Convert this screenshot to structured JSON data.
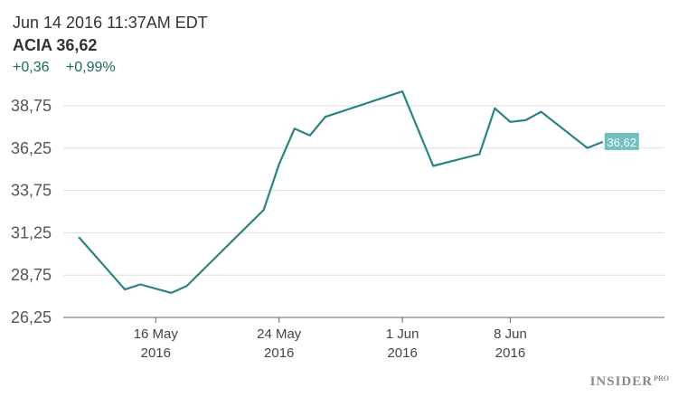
{
  "header": {
    "timestamp": "Jun 14 2016 11:37AM EDT",
    "ticker": "ACIA",
    "price": "36,62",
    "change_abs": "+0,36",
    "change_pct": "+0,99%"
  },
  "brand": {
    "name": "INSIDER",
    "suffix": "PRO"
  },
  "colors": {
    "line": "#2a8282",
    "grid": "#dddddd",
    "axis": "#666666",
    "change": "#1a6b5a",
    "badge": "#6fc1bf"
  },
  "chart_data": {
    "type": "line",
    "title": "",
    "xlabel": "",
    "ylabel": "",
    "ylim": [
      26.25,
      38.75
    ],
    "y_ticks": [
      26.25,
      28.75,
      31.25,
      33.75,
      36.25,
      38.75
    ],
    "y_tick_labels": [
      "26,25",
      "28,75",
      "31,25",
      "33,75",
      "36,25",
      "38,75"
    ],
    "x_range": [
      "2016-05-10",
      "2016-06-18"
    ],
    "x_ticks": [
      {
        "date": "2016-05-16",
        "line1": "16 May",
        "line2": "2016"
      },
      {
        "date": "2016-05-24",
        "line1": "24 May",
        "line2": "2016"
      },
      {
        "date": "2016-06-01",
        "line1": "1 Jun",
        "line2": "2016"
      },
      {
        "date": "2016-06-08",
        "line1": "8 Jun",
        "line2": "2016"
      }
    ],
    "grid": true,
    "series": [
      {
        "name": "",
        "points": [
          {
            "x": "2016-05-11",
            "y": 31.0
          },
          {
            "x": "2016-05-14",
            "y": 27.9
          },
          {
            "x": "2016-05-15",
            "y": 28.2
          },
          {
            "x": "2016-05-17",
            "y": 27.7
          },
          {
            "x": "2016-05-18",
            "y": 28.1
          },
          {
            "x": "2016-05-23",
            "y": 32.6
          },
          {
            "x": "2016-05-24",
            "y": 35.3
          },
          {
            "x": "2016-05-25",
            "y": 37.4
          },
          {
            "x": "2016-05-26",
            "y": 37.0
          },
          {
            "x": "2016-05-27",
            "y": 38.1
          },
          {
            "x": "2016-06-01",
            "y": 39.6
          },
          {
            "x": "2016-06-03",
            "y": 35.2
          },
          {
            "x": "2016-06-06",
            "y": 35.9
          },
          {
            "x": "2016-06-07",
            "y": 38.6
          },
          {
            "x": "2016-06-08",
            "y": 37.8
          },
          {
            "x": "2016-06-09",
            "y": 37.9
          },
          {
            "x": "2016-06-10",
            "y": 38.4
          },
          {
            "x": "2016-06-13",
            "y": 36.26
          },
          {
            "x": "2016-06-14",
            "y": 36.62
          }
        ]
      }
    ],
    "last_value_label": "36,62"
  }
}
